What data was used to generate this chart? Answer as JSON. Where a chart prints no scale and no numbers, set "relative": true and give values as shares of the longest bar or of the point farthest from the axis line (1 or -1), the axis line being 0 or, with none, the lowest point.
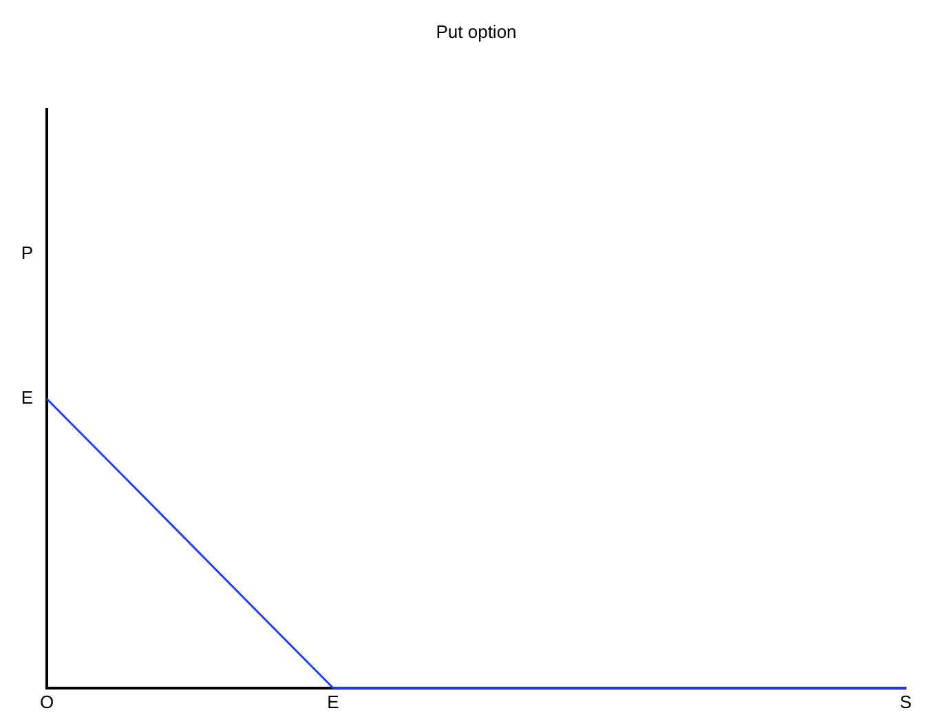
{
  "chart_data": {
    "type": "line",
    "title": "Put option",
    "relative": true,
    "categories": [
      "O",
      null,
      null,
      "E",
      null,
      null,
      null,
      null,
      null,
      "S"
    ],
    "series": [
      {
        "color": "#1f3fff",
        "values": [
          1,
          0.667,
          0.333,
          0,
          0,
          0,
          0,
          0,
          0,
          0
        ]
      }
    ],
    "annotations": [
      "E",
      "P"
    ],
    "grid": false,
    "legend": false,
    "marker": "none",
    "line_style": "solid"
  }
}
